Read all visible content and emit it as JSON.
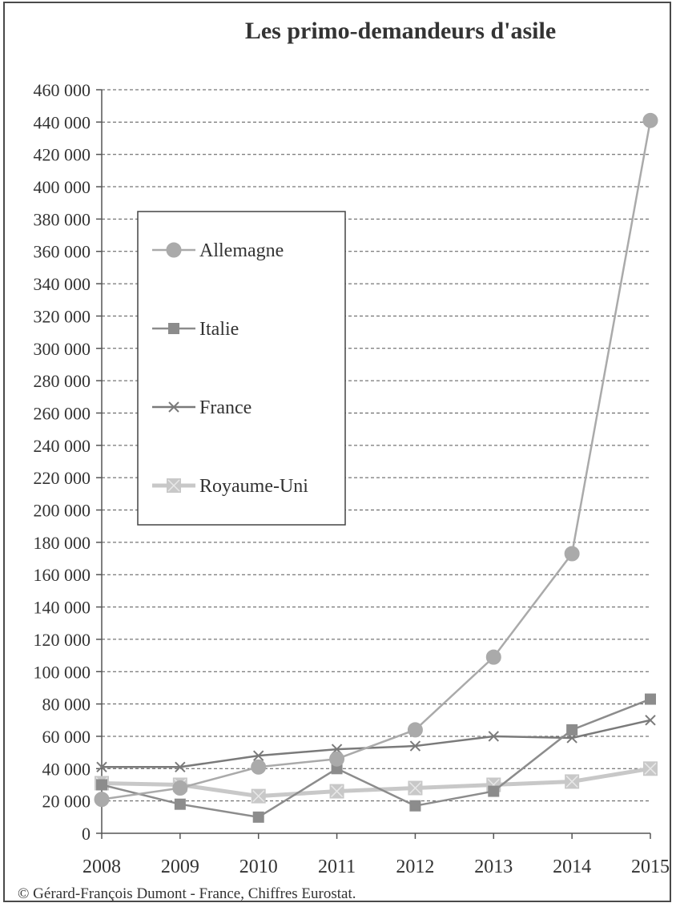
{
  "chart_data": {
    "type": "line",
    "title": "Les primo-demandeurs d'asile",
    "xlabel": "",
    "ylabel": "",
    "x": [
      "2008",
      "2009",
      "2010",
      "2011",
      "2012",
      "2013",
      "2014",
      "2015"
    ],
    "ylim": [
      0,
      460000
    ],
    "yticks": [
      0,
      20000,
      40000,
      60000,
      80000,
      100000,
      120000,
      140000,
      160000,
      180000,
      200000,
      220000,
      240000,
      260000,
      280000,
      300000,
      320000,
      340000,
      360000,
      380000,
      400000,
      420000,
      440000,
      460000
    ],
    "ytick_labels": [
      "0",
      "20 000",
      "40 000",
      "60 000",
      "80 000",
      "100 000",
      "120 000",
      "140 000",
      "160 000",
      "180 000",
      "200 000",
      "220 000",
      "240 000",
      "260 000",
      "280 000",
      "300 000",
      "320 000",
      "340 000",
      "360 000",
      "380 000",
      "400 000",
      "420 000",
      "440 000",
      "460 000"
    ],
    "grid": "horizontal dashed",
    "legend_position": "upper-left",
    "series": [
      {
        "name": "Allemagne",
        "marker": "circle",
        "color": "#aaaaaa",
        "values": [
          21000,
          28000,
          41000,
          46000,
          64000,
          109000,
          173000,
          441000
        ]
      },
      {
        "name": "Italie",
        "marker": "square",
        "color": "#8c8c8c",
        "values": [
          30000,
          18000,
          10000,
          40000,
          17000,
          26000,
          64000,
          83000
        ]
      },
      {
        "name": "France",
        "marker": "x",
        "color": "#7a7a7a",
        "values": [
          41000,
          41000,
          48000,
          52000,
          54000,
          60000,
          59000,
          70000
        ]
      },
      {
        "name": "Royaume-Uni",
        "marker": "square-x",
        "color": "#c8c8c8",
        "values": [
          31000,
          30000,
          23000,
          26000,
          28000,
          30000,
          32000,
          40000
        ]
      }
    ]
  },
  "credit": "© Gérard-François Dumont - France, Chiffres Eurostat."
}
